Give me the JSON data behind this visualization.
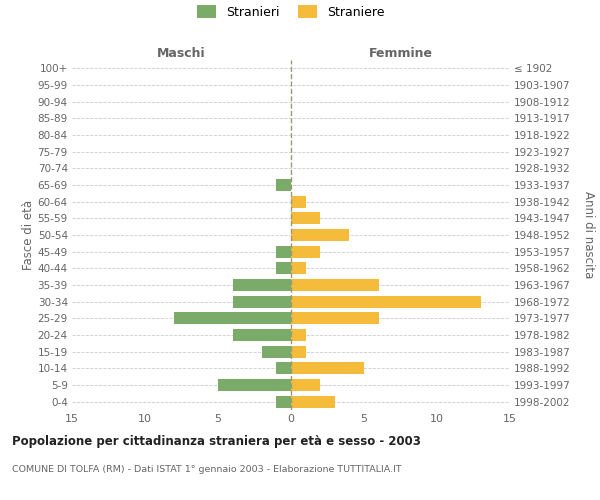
{
  "age_groups": [
    "0-4",
    "5-9",
    "10-14",
    "15-19",
    "20-24",
    "25-29",
    "30-34",
    "35-39",
    "40-44",
    "45-49",
    "50-54",
    "55-59",
    "60-64",
    "65-69",
    "70-74",
    "75-79",
    "80-84",
    "85-89",
    "90-94",
    "95-99",
    "100+"
  ],
  "birth_years": [
    "1998-2002",
    "1993-1997",
    "1988-1992",
    "1983-1987",
    "1978-1982",
    "1973-1977",
    "1968-1972",
    "1963-1967",
    "1958-1962",
    "1953-1957",
    "1948-1952",
    "1943-1947",
    "1938-1942",
    "1933-1937",
    "1928-1932",
    "1923-1927",
    "1918-1922",
    "1913-1917",
    "1908-1912",
    "1903-1907",
    "≤ 1902"
  ],
  "maschi": [
    1,
    5,
    1,
    2,
    4,
    8,
    4,
    4,
    1,
    1,
    0,
    0,
    0,
    1,
    0,
    0,
    0,
    0,
    0,
    0,
    0
  ],
  "femmine": [
    3,
    2,
    5,
    1,
    1,
    6,
    13,
    6,
    1,
    2,
    4,
    2,
    1,
    0,
    0,
    0,
    0,
    0,
    0,
    0,
    0
  ],
  "maschi_color": "#7aab68",
  "femmine_color": "#f5bb3a",
  "title": "Popolazione per cittadinanza straniera per età e sesso - 2003",
  "subtitle": "COMUNE DI TOLFA (RM) - Dati ISTAT 1° gennaio 2003 - Elaborazione TUTTITALIA.IT",
  "header_left": "Maschi",
  "header_right": "Femmine",
  "ylabel_left": "Fasce di età",
  "ylabel_right": "Anni di nascita",
  "legend_maschi": "Stranieri",
  "legend_femmine": "Straniere",
  "xlim": 15,
  "background_color": "#ffffff",
  "grid_color": "#cccccc",
  "text_color": "#666666"
}
